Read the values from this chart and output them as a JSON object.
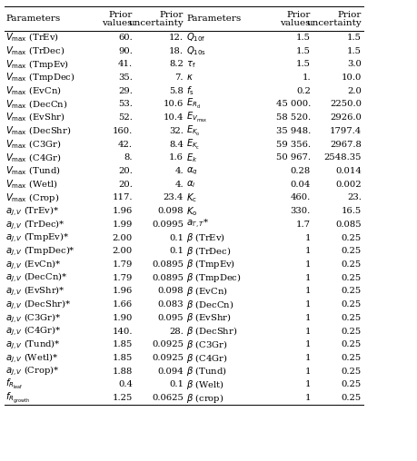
{
  "rows_left": [
    {
      "param": "$V_{\\mathrm{max}}$ (TrEv)",
      "val": "60.",
      "unc": "12."
    },
    {
      "param": "$V_{\\mathrm{max}}$ (TrDec)",
      "val": "90.",
      "unc": "18."
    },
    {
      "param": "$V_{\\mathrm{max}}$ (TmpEv)",
      "val": "41.",
      "unc": "8.2"
    },
    {
      "param": "$V_{\\mathrm{max}}$ (TmpDec)",
      "val": "35.",
      "unc": "7."
    },
    {
      "param": "$V_{\\mathrm{max}}$ (EvCn)",
      "val": "29.",
      "unc": "5.8"
    },
    {
      "param": "$V_{\\mathrm{max}}$ (DecCn)",
      "val": "53.",
      "unc": "10.6"
    },
    {
      "param": "$V_{\\mathrm{max}}$ (EvShr)",
      "val": "52.",
      "unc": "10.4"
    },
    {
      "param": "$V_{\\mathrm{max}}$ (DecShr)",
      "val": "160.",
      "unc": "32."
    },
    {
      "param": "$V_{\\mathrm{max}}$ (C3Gr)",
      "val": "42.",
      "unc": "8.4"
    },
    {
      "param": "$V_{\\mathrm{max}}$ (C4Gr)",
      "val": "8.",
      "unc": "1.6"
    },
    {
      "param": "$V_{\\mathrm{max}}$ (Tund)",
      "val": "20.",
      "unc": "4."
    },
    {
      "param": "$V_{\\mathrm{max}}$ (Wetl)",
      "val": "20.",
      "unc": "4."
    },
    {
      "param": "$V_{\\mathrm{max}}$ (Crop)",
      "val": "117.",
      "unc": "23.4"
    },
    {
      "param": "$a_{J,V}$ (TrEv)*",
      "val": "1.96",
      "unc": "0.098"
    },
    {
      "param": "$a_{J,V}$ (TrDec)*",
      "val": "1.99",
      "unc": "0.0995"
    },
    {
      "param": "$a_{J,V}$ (TmpEv)*",
      "val": "2.00",
      "unc": "0.1"
    },
    {
      "param": "$a_{J,V}$ (TmpDec)*",
      "val": "2.00",
      "unc": "0.1"
    },
    {
      "param": "$a_{J,V}$ (EvCn)*",
      "val": "1.79",
      "unc": "0.0895"
    },
    {
      "param": "$a_{J,V}$ (DecCn)*",
      "val": "1.79",
      "unc": "0.0895"
    },
    {
      "param": "$a_{J,V}$ (EvShr)*",
      "val": "1.96",
      "unc": "0.098"
    },
    {
      "param": "$a_{J,V}$ (DecShr)*",
      "val": "1.66",
      "unc": "0.083"
    },
    {
      "param": "$a_{J,V}$ (C3Gr)*",
      "val": "1.90",
      "unc": "0.095"
    },
    {
      "param": "$a_{J,V}$ (C4Gr)*",
      "val": "140.",
      "unc": "28."
    },
    {
      "param": "$a_{J,V}$ (Tund)*",
      "val": "1.85",
      "unc": "0.0925"
    },
    {
      "param": "$a_{J,V}$ (Wetl)*",
      "val": "1.85",
      "unc": "0.0925"
    },
    {
      "param": "$a_{J,V}$ (Crop)*",
      "val": "1.88",
      "unc": "0.094"
    },
    {
      "param": "$f_{R_{\\mathrm{leaf}}}$",
      "val": "0.4",
      "unc": "0.1"
    },
    {
      "param": "$f_{R_{\\mathrm{growth}}}$",
      "val": "1.25",
      "unc": "0.0625"
    }
  ],
  "rows_right": [
    {
      "param": "$Q_{\\mathrm{10f}}$",
      "val": "1.5",
      "unc": "1.5"
    },
    {
      "param": "$Q_{\\mathrm{10s}}$",
      "val": "1.5",
      "unc": "1.5"
    },
    {
      "param": "$\\tau_{\\mathrm{f}}$",
      "val": "1.5",
      "unc": "3.0"
    },
    {
      "param": "$\\kappa$",
      "val": "1.",
      "unc": "10.0"
    },
    {
      "param": "$f_{\\mathrm{s}}$",
      "val": "0.2",
      "unc": "2.0"
    },
    {
      "param": "$E_{R_{\\mathrm{d}}}$",
      "val": "45 000.",
      "unc": "2250.0"
    },
    {
      "param": "$E_{V_{\\mathrm{max}}}$",
      "val": "58 520.",
      "unc": "2926.0"
    },
    {
      "param": "$E_{K_{\\mathrm{o}}}$",
      "val": "35 948.",
      "unc": "1797.4"
    },
    {
      "param": "$E_{K_{\\mathrm{c}}}$",
      "val": "59 356.",
      "unc": "2967.8"
    },
    {
      "param": "$E_k$",
      "val": "50 967.",
      "unc": "2548.35"
    },
    {
      "param": "$\\alpha_q$",
      "val": "0.28",
      "unc": "0.014"
    },
    {
      "param": "$\\alpha_i$",
      "val": "0.04",
      "unc": "0.002"
    },
    {
      "param": "$K_{\\mathrm{c}}$",
      "val": "460.",
      "unc": "23."
    },
    {
      "param": "$K_{\\mathrm{o}}$",
      "val": "330.",
      "unc": "16.5"
    },
    {
      "param": "$a_{\\Gamma,T}$*",
      "val": "1.7",
      "unc": "0.085"
    },
    {
      "param": "$\\beta$ (TrEv)",
      "val": "1",
      "unc": "0.25"
    },
    {
      "param": "$\\beta$ (TrDec)",
      "val": "1",
      "unc": "0.25"
    },
    {
      "param": "$\\beta$ (TmpEv)",
      "val": "1",
      "unc": "0.25"
    },
    {
      "param": "$\\beta$ (TmpDec)",
      "val": "1",
      "unc": "0.25"
    },
    {
      "param": "$\\beta$ (EvCn)",
      "val": "1",
      "unc": "0.25"
    },
    {
      "param": "$\\beta$ (DecCn)",
      "val": "1",
      "unc": "0.25"
    },
    {
      "param": "$\\beta$ (EvShr)",
      "val": "1",
      "unc": "0.25"
    },
    {
      "param": "$\\beta$ (DecShr)",
      "val": "1",
      "unc": "0.25"
    },
    {
      "param": "$\\beta$ (C3Gr)",
      "val": "1",
      "unc": "0.25"
    },
    {
      "param": "$\\beta$ (C4Gr)",
      "val": "1",
      "unc": "0.25"
    },
    {
      "param": "$\\beta$ (Tund)",
      "val": "1",
      "unc": "0.25"
    },
    {
      "param": "$\\beta$ (Welt)",
      "val": "1",
      "unc": "0.25"
    },
    {
      "param": "$\\beta$ (crop)",
      "val": "1",
      "unc": "0.25"
    }
  ],
  "bg_color": "#ffffff",
  "text_color": "#000000",
  "line_color": "#000000"
}
